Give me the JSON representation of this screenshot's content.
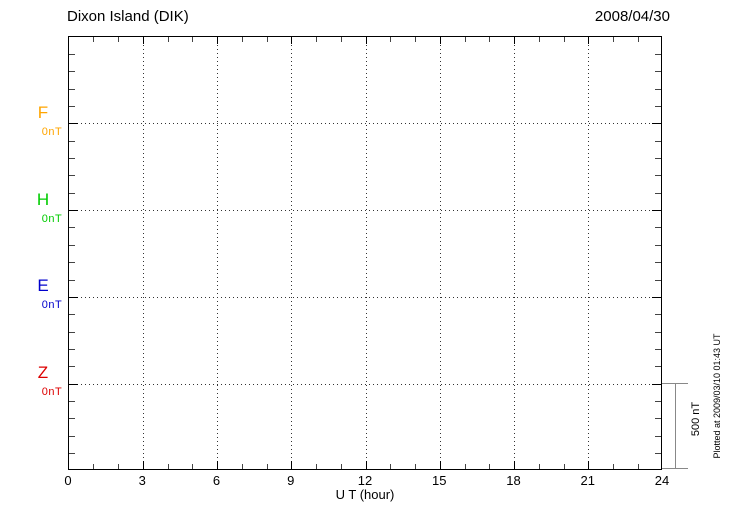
{
  "header": {
    "title": "Dixon Island (DIK)",
    "date": "2008/04/30"
  },
  "chart_data": {
    "type": "line",
    "title": "Dixon Island (DIK)",
    "date": "2008/04/30",
    "xlabel": "U T (hour)",
    "xlim": [
      0,
      24
    ],
    "x_major_ticks": [
      0,
      3,
      6,
      9,
      12,
      15,
      18,
      21,
      24
    ],
    "x_minor_tick_interval_hours": 1,
    "y_minor_tick_nT": 100,
    "panel_spacing_nT": 500,
    "grid": "dotted vertical lines every 3 hours; dotted horizontal line at each component 0 nT baseline",
    "legend_position": "left-outside",
    "series": [
      {
        "name": "F",
        "baseline_label": "0nT",
        "color": "#FFA500",
        "values": []
      },
      {
        "name": "H",
        "baseline_label": "0nT",
        "color": "#00CC00",
        "values": []
      },
      {
        "name": "E",
        "baseline_label": "0nT",
        "color": "#0000CC",
        "values": []
      },
      {
        "name": "Z",
        "baseline_label": "0nT",
        "color": "#DD0000",
        "values": []
      }
    ],
    "no_data_note": "no trace lines drawn; all four panels empty at their 0 nT baselines",
    "scale_bar": {
      "label": "500 nT",
      "span_nT": 500
    }
  },
  "annotations": {
    "plotted_at": "Plotted at 2009/03/10 01:43 UT"
  },
  "colors": {
    "axis": "#000000",
    "grid_dots": "#333333",
    "scale_bar": "#888888",
    "background": "#FFFFFF"
  }
}
